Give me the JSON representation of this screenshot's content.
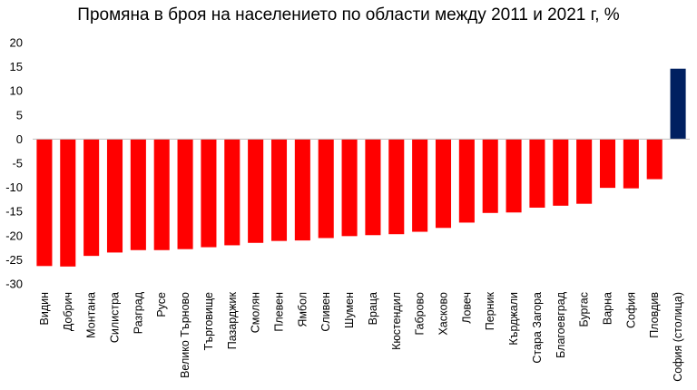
{
  "chart_data": {
    "type": "bar",
    "title": "Промяна в броя на населението по области между 2011 и 2021 г, %",
    "xlabel": "",
    "ylabel": "",
    "ylim": [
      -30,
      20
    ],
    "yticks": [
      20,
      15,
      10,
      5,
      0,
      -5,
      -10,
      -15,
      -20,
      -25,
      -30
    ],
    "grid": false,
    "legend": "none",
    "colors": {
      "negative": "#ff0000",
      "highlight": "#002060"
    },
    "categories": [
      "Видин",
      "Добрич",
      "Монтана",
      "Силистра",
      "Разград",
      "Русе",
      "Велико Търново",
      "Търговище",
      "Пазарджик",
      "Смолян",
      "Плевен",
      "Ямбол",
      "Сливен",
      "Шумен",
      "Враца",
      "Кюстендил",
      "Габрово",
      "Хасково",
      "Ловеч",
      "Перник",
      "Кърджали",
      "Стара Загора",
      "Благоевград",
      "Бургас",
      "Варна",
      "София",
      "Пловдив",
      "София (столица)"
    ],
    "values": [
      -26.3,
      -26.4,
      -24.2,
      -23.5,
      -23.0,
      -23.0,
      -22.8,
      -22.4,
      -22.0,
      -21.5,
      -21.1,
      -21.0,
      -20.5,
      -20.1,
      -19.9,
      -19.7,
      -19.2,
      -18.4,
      -17.3,
      -15.3,
      -15.2,
      -14.2,
      -13.8,
      -13.4,
      -10.1,
      -10.2,
      -8.3,
      14.6
    ],
    "bar_colors": [
      "#ff0000",
      "#ff0000",
      "#ff0000",
      "#ff0000",
      "#ff0000",
      "#ff0000",
      "#ff0000",
      "#ff0000",
      "#ff0000",
      "#ff0000",
      "#ff0000",
      "#ff0000",
      "#ff0000",
      "#ff0000",
      "#ff0000",
      "#ff0000",
      "#ff0000",
      "#ff0000",
      "#ff0000",
      "#ff0000",
      "#ff0000",
      "#ff0000",
      "#ff0000",
      "#ff0000",
      "#ff0000",
      "#ff0000",
      "#ff0000",
      "#002060"
    ]
  }
}
